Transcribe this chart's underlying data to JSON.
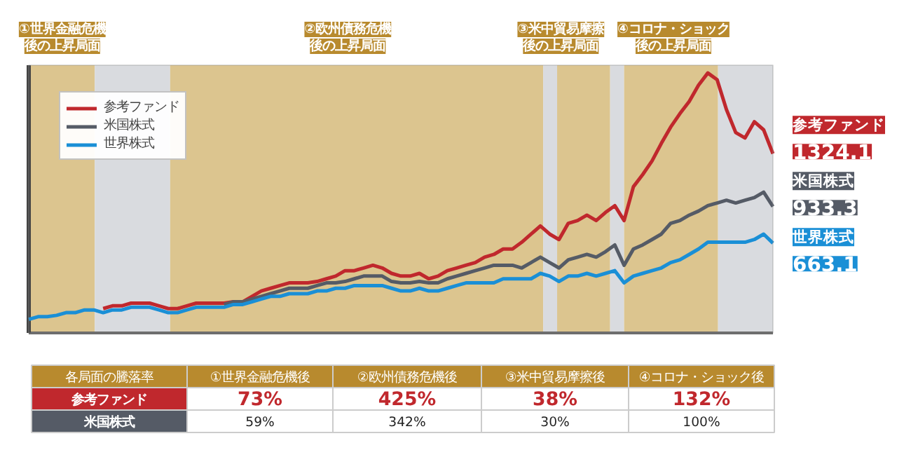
{
  "chart_data": {
    "type": "line",
    "legend": "top left",
    "categories": [
      null,
      null,
      null,
      null,
      null,
      null,
      null,
      null,
      null,
      null,
      null,
      null,
      null,
      null,
      null,
      null,
      null,
      null,
      null,
      null,
      null,
      null,
      null,
      null,
      null,
      null,
      null,
      null,
      null,
      null,
      null,
      null,
      null,
      null,
      null,
      null,
      null,
      null,
      null,
      null,
      null,
      null,
      null,
      null,
      null,
      null,
      null,
      null,
      null,
      null,
      null,
      null,
      null,
      null,
      null,
      null,
      null,
      null,
      null,
      null,
      null,
      null,
      null,
      null,
      null,
      null,
      null,
      null,
      null,
      null,
      null,
      null,
      null,
      null,
      null,
      null,
      null,
      null,
      null,
      null,
      null
    ],
    "series": [
      {
        "name": "参考ファンド",
        "color": "#c0282d",
        "values": [
          null,
          null,
          null,
          null,
          null,
          null,
          null,
          null,
          180,
          200,
          200,
          220,
          220,
          220,
          200,
          180,
          180,
          200,
          220,
          220,
          220,
          220,
          230,
          230,
          270,
          310,
          330,
          350,
          370,
          370,
          370,
          380,
          400,
          420,
          460,
          460,
          480,
          500,
          480,
          440,
          420,
          420,
          440,
          400,
          420,
          460,
          480,
          500,
          520,
          560,
          580,
          620,
          620,
          670,
          730,
          790,
          730,
          690,
          810,
          830,
          870,
          830,
          890,
          940,
          830,
          1080,
          1170,
          1270,
          1400,
          1520,
          1620,
          1710,
          1830,
          1920,
          1870,
          1650,
          1480,
          1440,
          1560,
          1500,
          1324.1
        ],
        "value_labels": [
          null,
          null,
          null,
          null,
          null,
          null,
          null,
          null,
          null,
          null,
          null,
          null,
          null,
          null,
          null,
          null,
          null,
          null,
          null,
          null,
          null,
          null,
          null,
          null,
          null,
          null,
          null,
          null,
          null,
          null,
          null,
          null,
          null,
          null,
          null,
          null,
          null,
          null,
          null,
          null,
          null,
          null,
          null,
          null,
          null,
          null,
          null,
          null,
          null,
          null,
          null,
          null,
          null,
          null,
          null,
          null,
          null,
          null,
          null,
          null,
          null,
          null,
          null,
          null,
          null,
          null,
          null,
          null,
          null,
          null,
          null,
          null,
          null,
          null,
          null,
          null,
          null,
          null,
          null,
          null,
          "1324.1"
        ]
      },
      {
        "name": "米国株式",
        "color": "#555b66",
        "values": [
          null,
          null,
          null,
          null,
          null,
          null,
          null,
          null,
          null,
          null,
          null,
          null,
          null,
          null,
          null,
          null,
          null,
          null,
          null,
          null,
          null,
          210,
          230,
          230,
          250,
          270,
          290,
          310,
          330,
          330,
          330,
          350,
          370,
          370,
          380,
          400,
          420,
          420,
          420,
          380,
          370,
          370,
          380,
          370,
          370,
          400,
          420,
          440,
          460,
          480,
          500,
          500,
          500,
          480,
          520,
          560,
          520,
          480,
          540,
          560,
          580,
          560,
          600,
          650,
          500,
          620,
          650,
          690,
          730,
          810,
          830,
          870,
          900,
          940,
          960,
          980,
          960,
          980,
          1000,
          1040,
          933.3
        ],
        "value_labels": [
          null,
          null,
          null,
          null,
          null,
          null,
          null,
          null,
          null,
          null,
          null,
          null,
          null,
          null,
          null,
          null,
          null,
          null,
          null,
          null,
          null,
          null,
          null,
          null,
          null,
          null,
          null,
          null,
          null,
          null,
          null,
          null,
          null,
          null,
          null,
          null,
          null,
          null,
          null,
          null,
          null,
          null,
          null,
          null,
          null,
          null,
          null,
          null,
          null,
          null,
          null,
          null,
          null,
          null,
          null,
          null,
          null,
          null,
          null,
          null,
          null,
          null,
          null,
          null,
          null,
          null,
          null,
          null,
          null,
          null,
          null,
          null,
          null,
          null,
          null,
          null,
          null,
          null,
          null,
          null,
          "933.3"
        ]
      },
      {
        "name": "世界株式",
        "color": "#1a8fd6",
        "values": [
          100,
          120,
          120,
          130,
          150,
          150,
          170,
          170,
          150,
          170,
          170,
          190,
          190,
          190,
          170,
          150,
          150,
          170,
          190,
          190,
          190,
          190,
          210,
          210,
          230,
          250,
          270,
          270,
          290,
          290,
          290,
          310,
          310,
          330,
          330,
          350,
          350,
          350,
          350,
          330,
          310,
          310,
          330,
          310,
          310,
          330,
          350,
          370,
          370,
          370,
          370,
          400,
          400,
          400,
          400,
          440,
          420,
          380,
          420,
          420,
          440,
          420,
          440,
          460,
          370,
          420,
          440,
          460,
          480,
          520,
          540,
          580,
          620,
          670,
          670,
          670,
          670,
          670,
          690,
          730,
          663.1
        ],
        "value_labels": [
          null,
          null,
          null,
          null,
          null,
          null,
          null,
          null,
          null,
          null,
          null,
          null,
          null,
          null,
          null,
          null,
          null,
          null,
          null,
          null,
          null,
          null,
          null,
          null,
          null,
          null,
          null,
          null,
          null,
          null,
          null,
          null,
          null,
          null,
          null,
          null,
          null,
          null,
          null,
          null,
          null,
          null,
          null,
          null,
          null,
          null,
          null,
          null,
          null,
          null,
          null,
          null,
          null,
          null,
          null,
          null,
          null,
          null,
          null,
          null,
          null,
          null,
          null,
          null,
          null,
          null,
          null,
          null,
          null,
          null,
          null,
          null,
          null,
          null,
          null,
          null,
          null,
          null,
          null,
          null,
          "663.1"
        ]
      }
    ],
    "annotations": [
      "①世界金融危機",
      "後の上昇局面",
      "②欧州債務危機",
      "後の上昇局面",
      "③米中貿易摩擦",
      "後の上昇局面",
      "④コロナ・ショック",
      "後の上昇局面",
      "各局面の騰落率",
      "①世界金融危機後",
      "②欧州債務危機後",
      "③米中貿易摩擦後",
      "④コロナ・ショック後",
      "参考ファンド",
      "73%",
      "425%",
      "38%",
      "132%",
      "米国株式",
      "59%",
      "342%",
      "30%",
      "100%"
    ]
  }
}
